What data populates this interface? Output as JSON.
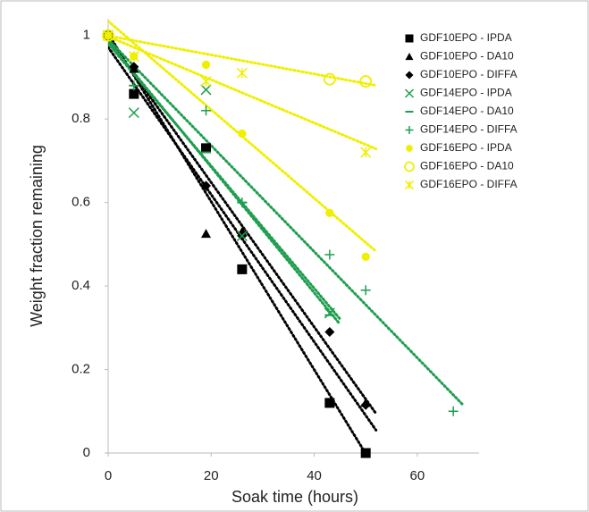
{
  "chart_data": {
    "type": "scatter",
    "x_label": "Soak time (hours)",
    "y_label": "Weight fraction remaining",
    "xlim": [
      0,
      72
    ],
    "ylim": [
      0,
      1.04
    ],
    "xticks": [
      0,
      20,
      40,
      60
    ],
    "yticks": [
      0,
      0.2,
      0.4,
      0.6,
      0.8,
      1
    ],
    "legend": "upper right",
    "trendline": "linear",
    "series": [
      {
        "name": "GDF10EPO - IPDA",
        "color": "#000000",
        "marker": "square",
        "x": [
          0,
          5,
          19,
          26,
          43,
          50
        ],
        "values": [
          1,
          0.86,
          0.73,
          0.44,
          0.12,
          0
        ]
      },
      {
        "name": "GDF10EPO - DA10",
        "color": "#000000",
        "marker": "triangle",
        "x": [
          0,
          5,
          19,
          26,
          50
        ],
        "values": [
          1,
          0.92,
          0.525,
          0.53,
          0.12
        ]
      },
      {
        "name": "GDF10EPO - DIFFA",
        "color": "#000000",
        "marker": "diamond",
        "x": [
          0,
          5,
          19,
          26,
          43,
          50
        ],
        "values": [
          1,
          0.925,
          0.64,
          0.52,
          0.29,
          0.115
        ]
      },
      {
        "name": "GDF14EPO - IPDA",
        "color": "#1f9e4f",
        "marker": "x",
        "x": [
          0,
          5,
          19,
          26,
          43
        ],
        "values": [
          1,
          0.815,
          0.87,
          0.52,
          0.335
        ]
      },
      {
        "name": "GDF14EPO - DA10",
        "color": "#1f9e4f",
        "marker": "dash",
        "x": [
          0,
          5,
          19,
          26,
          43
        ],
        "values": [
          1,
          0.88,
          0.72,
          0.6,
          0.33
        ]
      },
      {
        "name": "GDF14EPO - DIFFA",
        "color": "#1f9e4f",
        "marker": "plus",
        "x": [
          0,
          5,
          19,
          26,
          43,
          50,
          67
        ],
        "values": [
          1,
          0.88,
          0.82,
          0.6,
          0.475,
          0.39,
          0.1
        ]
      },
      {
        "name": "GDF16EPO - IPDA",
        "color": "#f0ef00",
        "marker": "circle",
        "x": [
          0,
          5,
          19,
          26,
          43,
          50
        ],
        "values": [
          1,
          0.95,
          0.93,
          0.765,
          0.575,
          0.47
        ]
      },
      {
        "name": "GDF16EPO - DA10",
        "color": "#f0ef00",
        "marker": "open-circle",
        "x": [
          0,
          43,
          50
        ],
        "values": [
          1,
          0.895,
          0.89
        ]
      },
      {
        "name": "GDF16EPO - DIFFA",
        "color": "#f0ef00",
        "marker": "star",
        "x": [
          0,
          5,
          19,
          26,
          50
        ],
        "values": [
          1,
          0.95,
          0.89,
          0.91,
          0.72
        ]
      }
    ]
  }
}
